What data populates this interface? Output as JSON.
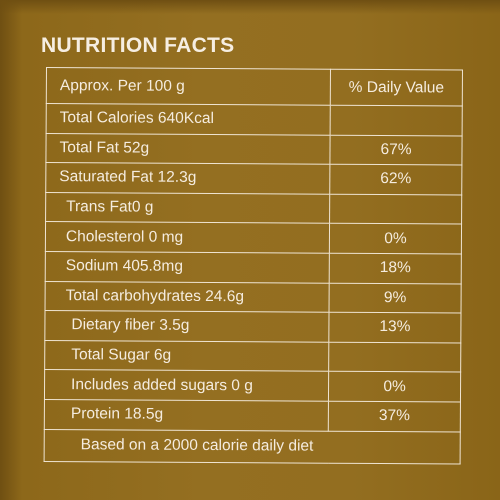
{
  "title": "NUTRITION FACTS",
  "header": {
    "left": "Approx. Per 100 g",
    "right": "% Daily Value"
  },
  "rows": [
    {
      "label": "Total Calories 640Kcal",
      "dv": ""
    },
    {
      "label": "Total Fat 52g",
      "dv": "67%"
    },
    {
      "label": "Saturated Fat 12.3g",
      "dv": "62%"
    },
    {
      "label": "Trans Fat0 g",
      "dv": ""
    },
    {
      "label": "Cholesterol 0 mg",
      "dv": "0%"
    },
    {
      "label": "Sodium 405.8mg",
      "dv": "18%"
    },
    {
      "label": "Total carbohydrates 24.6g",
      "dv": "9%"
    },
    {
      "label": "Dietary fiber 3.5g",
      "dv": "13%"
    },
    {
      "label": "Total Sugar 6g",
      "dv": ""
    },
    {
      "label": "Includes added sugars 0 g",
      "dv": "0%"
    },
    {
      "label": "Protein 18.5g",
      "dv": "37%"
    }
  ],
  "footer": "Based on a 2000 calorie daily diet",
  "colors": {
    "background": "#8f6a1c",
    "text": "#f4eadb",
    "border": "#efe4d2"
  }
}
